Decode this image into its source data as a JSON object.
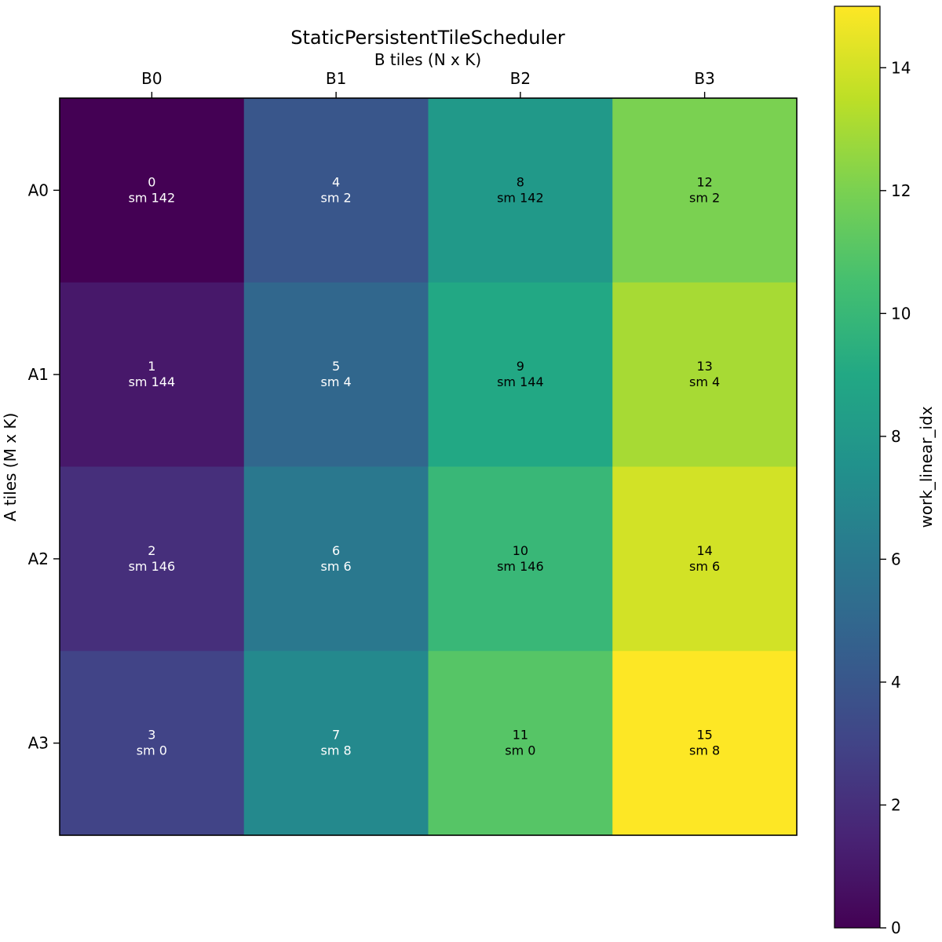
{
  "chart_data": {
    "type": "heatmap",
    "title": "StaticPersistentTileScheduler",
    "xlabel": "B tiles (N x K)",
    "ylabel": "A tiles (M x K)",
    "x_categories": [
      "B0",
      "B1",
      "B2",
      "B3"
    ],
    "y_categories": [
      "A0",
      "A1",
      "A2",
      "A3"
    ],
    "x_axis_position": "top",
    "values": [
      [
        0,
        4,
        8,
        12
      ],
      [
        1,
        5,
        9,
        13
      ],
      [
        2,
        6,
        10,
        14
      ],
      [
        3,
        7,
        11,
        15
      ]
    ],
    "cell_labels": [
      [
        [
          "0",
          "sm 142"
        ],
        [
          "4",
          "sm 2"
        ],
        [
          "8",
          "sm 142"
        ],
        [
          "12",
          "sm 2"
        ]
      ],
      [
        [
          "1",
          "sm 144"
        ],
        [
          "5",
          "sm 4"
        ],
        [
          "9",
          "sm 144"
        ],
        [
          "13",
          "sm 4"
        ]
      ],
      [
        [
          "2",
          "sm 146"
        ],
        [
          "6",
          "sm 6"
        ],
        [
          "10",
          "sm 146"
        ],
        [
          "14",
          "sm 6"
        ]
      ],
      [
        [
          "3",
          "sm 0"
        ],
        [
          "7",
          "sm 8"
        ],
        [
          "11",
          "sm 0"
        ],
        [
          "15",
          "sm 8"
        ]
      ]
    ],
    "colormap": "viridis",
    "colorbar": {
      "label": "work_linear_idx",
      "range": [
        0,
        15
      ],
      "ticks": [
        0,
        2,
        4,
        6,
        8,
        10,
        12,
        14
      ]
    },
    "grid": false
  }
}
